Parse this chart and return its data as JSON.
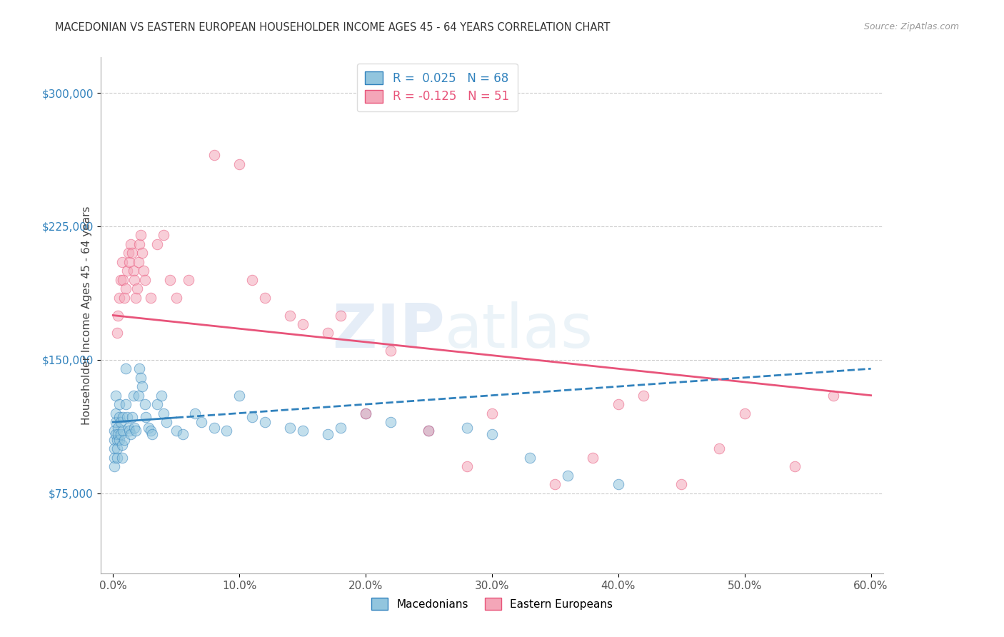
{
  "title": "MACEDONIAN VS EASTERN EUROPEAN HOUSEHOLDER INCOME AGES 45 - 64 YEARS CORRELATION CHART",
  "source": "Source: ZipAtlas.com",
  "xlabel_ticks": [
    "0.0%",
    "10.0%",
    "20.0%",
    "30.0%",
    "40.0%",
    "50.0%",
    "60.0%"
  ],
  "xlabel_vals": [
    0,
    10,
    20,
    30,
    40,
    50,
    60
  ],
  "ylabel_ticks": [
    "$75,000",
    "$150,000",
    "$225,000",
    "$300,000"
  ],
  "ylabel_vals": [
    75000,
    150000,
    225000,
    300000
  ],
  "xlim": [
    -1,
    61
  ],
  "ylim": [
    30000,
    320000
  ],
  "macedonian_R": 0.025,
  "macedonian_N": 68,
  "eastern_R": -0.125,
  "eastern_N": 51,
  "blue_color": "#92c5de",
  "pink_color": "#f4a6b8",
  "blue_line_color": "#3182bd",
  "pink_line_color": "#e8547a",
  "watermark_zip": "ZIP",
  "watermark_atlas": "atlas",
  "macedonians_label": "Macedonians",
  "eastern_label": "Eastern Europeans",
  "ylabel": "Householder Income Ages 45 - 64 years",
  "mac_x": [
    0.1,
    0.1,
    0.1,
    0.1,
    0.1,
    0.2,
    0.2,
    0.2,
    0.2,
    0.3,
    0.3,
    0.3,
    0.4,
    0.4,
    0.5,
    0.5,
    0.5,
    0.6,
    0.6,
    0.7,
    0.7,
    0.8,
    0.8,
    0.9,
    1.0,
    1.0,
    1.1,
    1.2,
    1.3,
    1.4,
    1.5,
    1.6,
    1.7,
    1.8,
    2.0,
    2.1,
    2.2,
    2.3,
    2.5,
    2.6,
    2.8,
    3.0,
    3.1,
    3.5,
    3.8,
    4.0,
    4.2,
    5.0,
    5.5,
    6.5,
    7.0,
    8.0,
    9.0,
    10.0,
    11.0,
    12.0,
    14.0,
    15.0,
    17.0,
    18.0,
    20.0,
    22.0,
    25.0,
    28.0,
    30.0,
    33.0,
    36.0,
    40.0
  ],
  "mac_y": [
    110000,
    105000,
    100000,
    95000,
    90000,
    130000,
    120000,
    115000,
    108000,
    105000,
    100000,
    95000,
    112000,
    108000,
    125000,
    118000,
    105000,
    115000,
    108000,
    102000,
    95000,
    118000,
    110000,
    105000,
    145000,
    125000,
    118000,
    112000,
    110000,
    108000,
    118000,
    130000,
    112000,
    110000,
    130000,
    145000,
    140000,
    135000,
    125000,
    118000,
    112000,
    110000,
    108000,
    125000,
    130000,
    120000,
    115000,
    110000,
    108000,
    120000,
    115000,
    112000,
    110000,
    130000,
    118000,
    115000,
    112000,
    110000,
    108000,
    112000,
    120000,
    115000,
    110000,
    112000,
    108000,
    95000,
    85000,
    80000
  ],
  "east_x": [
    0.3,
    0.4,
    0.5,
    0.6,
    0.7,
    0.8,
    0.9,
    1.0,
    1.1,
    1.2,
    1.3,
    1.4,
    1.5,
    1.6,
    1.7,
    1.8,
    1.9,
    2.0,
    2.1,
    2.2,
    2.3,
    2.4,
    2.5,
    3.0,
    3.5,
    4.0,
    4.5,
    5.0,
    6.0,
    8.0,
    10.0,
    11.0,
    12.0,
    14.0,
    15.0,
    17.0,
    18.0,
    20.0,
    22.0,
    25.0,
    28.0,
    30.0,
    35.0,
    38.0,
    40.0,
    42.0,
    45.0,
    48.0,
    50.0,
    54.0,
    57.0
  ],
  "east_y": [
    165000,
    175000,
    185000,
    195000,
    205000,
    195000,
    185000,
    190000,
    200000,
    210000,
    205000,
    215000,
    210000,
    200000,
    195000,
    185000,
    190000,
    205000,
    215000,
    220000,
    210000,
    200000,
    195000,
    185000,
    215000,
    220000,
    195000,
    185000,
    195000,
    265000,
    260000,
    195000,
    185000,
    175000,
    170000,
    165000,
    175000,
    120000,
    155000,
    110000,
    90000,
    120000,
    80000,
    95000,
    125000,
    130000,
    80000,
    100000,
    120000,
    90000,
    130000
  ]
}
